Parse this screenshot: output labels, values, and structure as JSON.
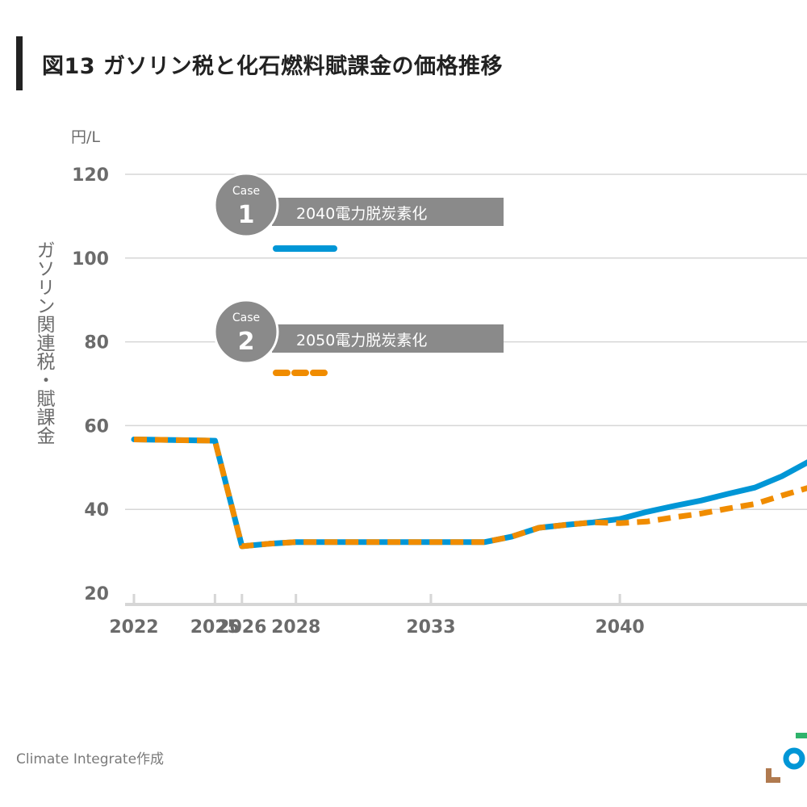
{
  "title": "図13 ガソリン税と化石燃料賦課金の価格推移",
  "unit_label": "円/L",
  "ylabel_text": "ガソリン関連税・賦課金",
  "source": "Climate Integrate作成",
  "logo": {
    "name": "climate-integrate-logo",
    "colors": [
      "#2fb36b",
      "#0096d6",
      "#b07a4f"
    ]
  },
  "legend": [
    {
      "case_word": "Case",
      "case_number": "1",
      "label": "2040電力脱炭素化",
      "color": "#0096d6",
      "style": "solid"
    },
    {
      "case_word": "Case",
      "case_number": "2",
      "label": "2050電力脱炭素化",
      "color": "#f08c00",
      "style": "dashed"
    }
  ],
  "chart_data": {
    "type": "line",
    "title": "図13 ガソリン税と化石燃料賦課金の価格推移",
    "xlabel": "",
    "ylabel": "ガソリン関連税・賦課金 (円/L)",
    "ylim": [
      20,
      120
    ],
    "yticks": [
      20,
      40,
      60,
      80,
      100,
      120
    ],
    "xticks": [
      2022,
      2025,
      2026,
      2028,
      2033,
      2040
    ],
    "grid": true,
    "legend_position": "top-left",
    "x": [
      2022,
      2025,
      2026,
      2027,
      2028,
      2029,
      2030,
      2031,
      2032,
      2033,
      2034,
      2035,
      2036,
      2037,
      2038,
      2039,
      2040,
      2041,
      2042,
      2043,
      2044,
      2045,
      2046,
      2047
    ],
    "series": [
      {
        "name": "Case 1 2040電力脱炭素化",
        "color": "#0096d6",
        "values": [
          56.7,
          56.4,
          31.2,
          31.8,
          32.2,
          32.2,
          32.2,
          32.2,
          32.2,
          32.2,
          32.2,
          32.2,
          33.5,
          35.6,
          36.3,
          36.9,
          37.7,
          39.4,
          40.8,
          42.1,
          43.7,
          45.2,
          47.9,
          51.4
        ]
      },
      {
        "name": "Case 2 2050電力脱炭素化",
        "color": "#f08c00",
        "values": [
          56.7,
          56.4,
          31.2,
          31.8,
          32.2,
          32.2,
          32.2,
          32.2,
          32.2,
          32.2,
          32.2,
          32.2,
          33.5,
          35.6,
          36.3,
          36.9,
          36.7,
          37.1,
          38.1,
          39.0,
          40.2,
          41.3,
          43.3,
          45.2
        ]
      }
    ]
  }
}
